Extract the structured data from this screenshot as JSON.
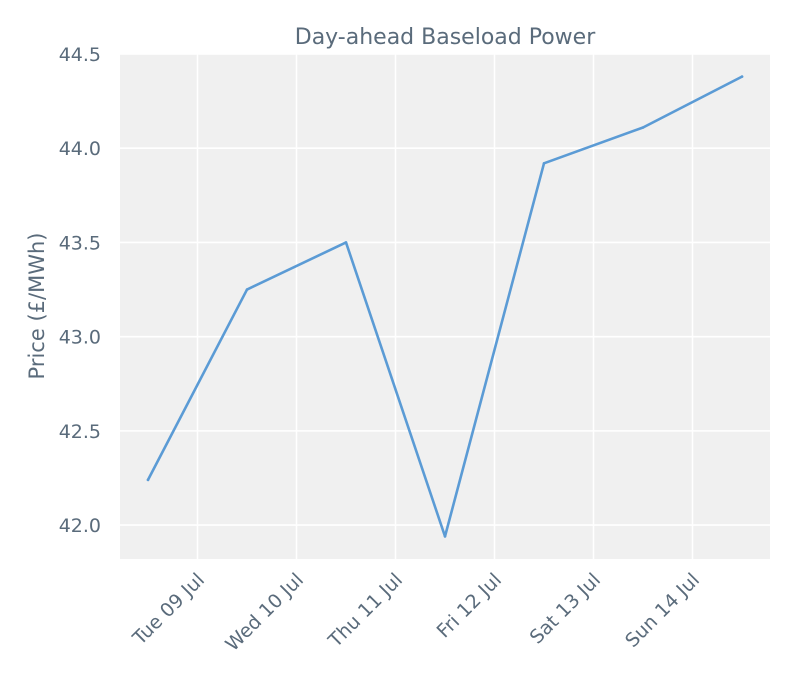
{
  "chart_data": {
    "type": "line",
    "title": "Day-ahead Baseload Power",
    "xlabel": "",
    "ylabel": "Price (£/MWh)",
    "x": [
      "2024-07-08 12:00",
      "2024-07-09 12:00",
      "2024-07-10 12:00",
      "2024-07-11 12:00",
      "2024-07-12 12:00",
      "2024-07-13 12:00",
      "2024-07-14 12:00"
    ],
    "values": [
      42.24,
      43.25,
      43.5,
      41.94,
      43.92,
      44.11,
      44.38
    ],
    "xticks": [
      "Tue 09 Jul",
      "Wed 10 Jul",
      "Thu 11 Jul",
      "Fri 12 Jul",
      "Sat 13 Jul",
      "Sun 14 Jul"
    ],
    "yticks": [
      "42.0",
      "42.5",
      "43.0",
      "43.5",
      "44.0",
      "44.5"
    ],
    "ylim": [
      41.82,
      44.5
    ],
    "grid": true,
    "colors": {
      "line": "#5b9bd5",
      "plot_bg": "#f0f0f0",
      "text": "#5a6b7b"
    }
  }
}
